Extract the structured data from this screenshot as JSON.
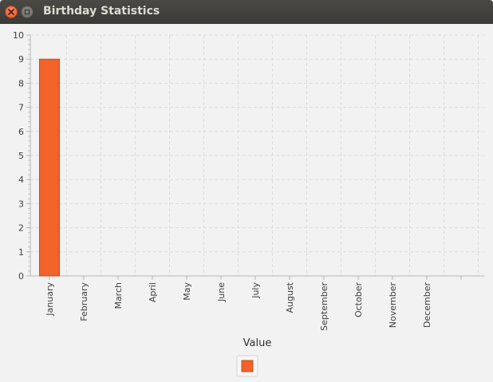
{
  "window": {
    "title": "Birthday Statistics",
    "close_icon": "close-icon",
    "minimize_icon": "minimize-icon"
  },
  "chart_data": {
    "type": "bar",
    "categories": [
      "January",
      "February",
      "March",
      "April",
      "May",
      "June",
      "July",
      "August",
      "September",
      "October",
      "November",
      "December"
    ],
    "series": [
      {
        "values": [
          9,
          0,
          0,
          0,
          0,
          0,
          0,
          0,
          0,
          0,
          0,
          0
        ],
        "color": "#f26229"
      }
    ],
    "xlabel": "Value",
    "ylabel": "",
    "ylim": [
      0,
      10
    ],
    "yticks": [
      0,
      1,
      2,
      3,
      4,
      5,
      6,
      7,
      8,
      9,
      10
    ],
    "grid": true,
    "legend": "bottom-center"
  }
}
